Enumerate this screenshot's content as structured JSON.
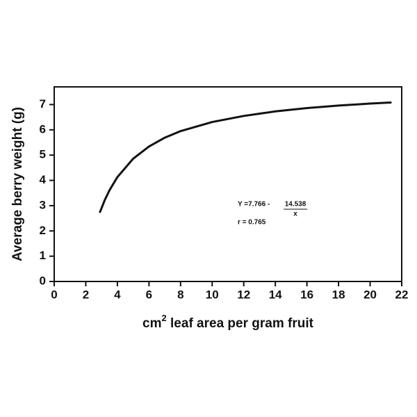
{
  "chart_data": {
    "type": "line",
    "x_label": [
      "cm",
      "2",
      " leaf area per gram fruit"
    ],
    "y_label": "Average berry weight (g)",
    "x": [
      2.9,
      3.2,
      3.5,
      4,
      5,
      6,
      7,
      8,
      10,
      12,
      14,
      16,
      18,
      20,
      21.3
    ],
    "series": [
      {
        "color": "#111111",
        "values": [
          2.75,
          3.22,
          3.61,
          4.13,
          4.86,
          5.34,
          5.69,
          5.95,
          6.31,
          6.55,
          6.73,
          6.86,
          6.96,
          7.04,
          7.08
        ]
      }
    ],
    "xlim": [
      0,
      22
    ],
    "ylim": [
      0,
      7.7
    ],
    "xticks": [
      0,
      2,
      4,
      6,
      8,
      10,
      12,
      14,
      16,
      18,
      20,
      22
    ],
    "yticks": [
      0,
      1,
      2,
      3,
      4,
      5,
      6,
      7
    ],
    "annotation": {
      "equation": "Y =7.766 - ",
      "numerator": "14.538",
      "denominator": "x",
      "r": "r = 0.765"
    }
  }
}
